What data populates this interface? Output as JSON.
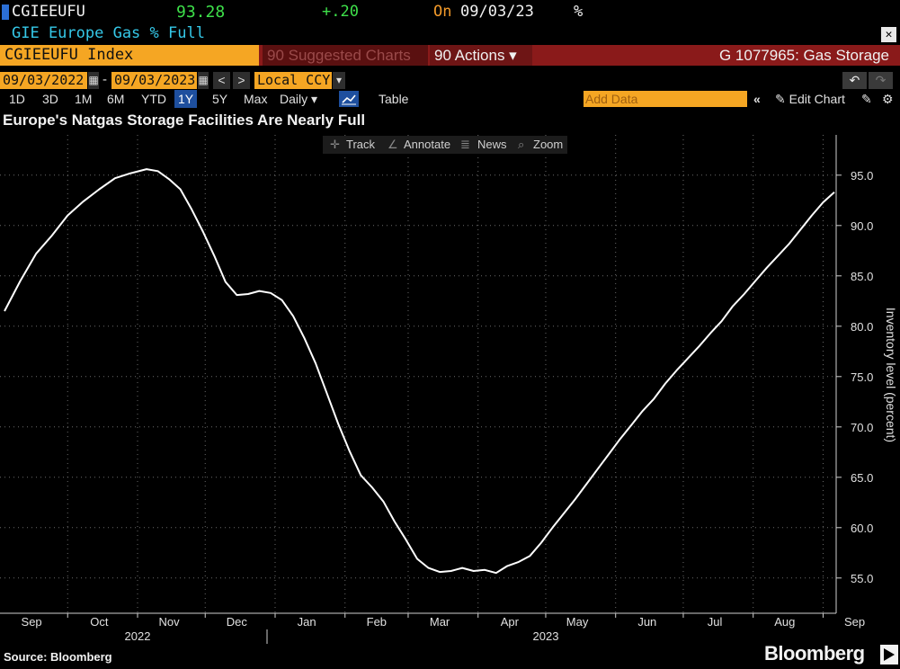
{
  "header": {
    "ticker": "CGIEEUFU",
    "last_price": "93.28",
    "change": "+.20",
    "on_label": "On",
    "on_date": "09/03/23",
    "pct_symbol": "%",
    "description": "GIE Europe Gas % Full",
    "close_glyph": "✕"
  },
  "toolbar_row": {
    "index_label": "CGIEEUFU Index",
    "suggested_label": "90 Suggested Charts",
    "actions_label": "90 Actions ▾",
    "graph_title": "G 1077965: Gas Storage",
    "undo_glyph": "↶",
    "redo_glyph": "↷"
  },
  "date_row": {
    "start_date": "09/03/2022",
    "dash": "-",
    "end_date": "09/03/2023",
    "currency": "Local CCY",
    "prev_glyph": "<",
    "next_glyph": ">",
    "dropdown_glyph": "▾"
  },
  "range_row": {
    "buttons": [
      "1D",
      "3D",
      "1M",
      "6M",
      "YTD",
      "1Y",
      "5Y",
      "Max"
    ],
    "selected": "1Y",
    "frequency": "Daily ▾",
    "table_label": "Table",
    "add_data_placeholder": "Add Data",
    "collapse_glyph": "«",
    "edit_chart_label": "✎ Edit Chart",
    "settings_glyph": "⚙"
  },
  "chart_tools": {
    "track": "Track",
    "annotate": "Annotate",
    "news": "News",
    "zoom": "Zoom"
  },
  "chart_data": {
    "type": "line",
    "title": "Europe's Natgas Storage Facilities Are Nearly Full",
    "ylabel": "Inventory level (percent)",
    "xlabel": "",
    "ylim": [
      51.5,
      99
    ],
    "y_ticks": [
      55.0,
      60.0,
      65.0,
      70.0,
      75.0,
      80.0,
      85.0,
      90.0,
      95.0
    ],
    "x_range": [
      "2022-09-01",
      "2023-09-06"
    ],
    "x_ticks": [
      {
        "label": "Sep",
        "date": "2022-09-15"
      },
      {
        "label": "Oct",
        "date": "2022-10-15"
      },
      {
        "label": "Nov",
        "date": "2022-11-15"
      },
      {
        "label": "Dec",
        "date": "2022-12-15"
      },
      {
        "label": "Jan",
        "date": "2023-01-15"
      },
      {
        "label": "Feb",
        "date": "2023-02-15"
      },
      {
        "label": "Mar",
        "date": "2023-03-15"
      },
      {
        "label": "Apr",
        "date": "2023-04-15"
      },
      {
        "label": "May",
        "date": "2023-05-15"
      },
      {
        "label": "Jun",
        "date": "2023-06-15"
      },
      {
        "label": "Jul",
        "date": "2023-07-15"
      },
      {
        "label": "Aug",
        "date": "2023-08-15"
      },
      {
        "label": "Sep",
        "date": "2023-09-15"
      }
    ],
    "year_labels": [
      {
        "label": "2022",
        "date": "2022-11-01"
      },
      {
        "label": "2023",
        "date": "2023-05-01"
      }
    ],
    "grid": true,
    "series": [
      {
        "color": "#ffffff",
        "points": [
          [
            "2022-09-03",
            81.5
          ],
          [
            "2022-09-10",
            84.5
          ],
          [
            "2022-09-17",
            87.2
          ],
          [
            "2022-09-24",
            89.0
          ],
          [
            "2022-10-01",
            91.0
          ],
          [
            "2022-10-08",
            92.4
          ],
          [
            "2022-10-15",
            93.6
          ],
          [
            "2022-10-22",
            94.7
          ],
          [
            "2022-10-29",
            95.2
          ],
          [
            "2022-11-05",
            95.6
          ],
          [
            "2022-11-10",
            95.4
          ],
          [
            "2022-11-15",
            94.6
          ],
          [
            "2022-11-20",
            93.6
          ],
          [
            "2022-11-25",
            91.6
          ],
          [
            "2022-11-30",
            89.4
          ],
          [
            "2022-12-05",
            87.0
          ],
          [
            "2022-12-10",
            84.4
          ],
          [
            "2022-12-15",
            83.1
          ],
          [
            "2022-12-20",
            83.2
          ],
          [
            "2022-12-25",
            83.5
          ],
          [
            "2022-12-30",
            83.3
          ],
          [
            "2023-01-04",
            82.6
          ],
          [
            "2023-01-09",
            81.0
          ],
          [
            "2023-01-14",
            78.8
          ],
          [
            "2023-01-19",
            76.3
          ],
          [
            "2023-01-24",
            73.3
          ],
          [
            "2023-01-29",
            70.3
          ],
          [
            "2023-02-03",
            67.6
          ],
          [
            "2023-02-08",
            65.2
          ],
          [
            "2023-02-13",
            64.0
          ],
          [
            "2023-02-18",
            62.6
          ],
          [
            "2023-02-23",
            60.6
          ],
          [
            "2023-02-28",
            58.8
          ],
          [
            "2023-03-05",
            56.9
          ],
          [
            "2023-03-10",
            56.0
          ],
          [
            "2023-03-15",
            55.6
          ],
          [
            "2023-03-20",
            55.7
          ],
          [
            "2023-03-25",
            56.0
          ],
          [
            "2023-03-30",
            55.7
          ],
          [
            "2023-04-04",
            55.8
          ],
          [
            "2023-04-09",
            55.5
          ],
          [
            "2023-04-14",
            56.2
          ],
          [
            "2023-04-19",
            56.6
          ],
          [
            "2023-04-24",
            57.2
          ],
          [
            "2023-04-29",
            58.5
          ],
          [
            "2023-05-04",
            60.0
          ],
          [
            "2023-05-09",
            61.4
          ],
          [
            "2023-05-14",
            62.8
          ],
          [
            "2023-05-19",
            64.3
          ],
          [
            "2023-05-24",
            65.8
          ],
          [
            "2023-05-29",
            67.3
          ],
          [
            "2023-06-03",
            68.8
          ],
          [
            "2023-06-08",
            70.2
          ],
          [
            "2023-06-13",
            71.6
          ],
          [
            "2023-06-18",
            72.8
          ],
          [
            "2023-06-23",
            74.3
          ],
          [
            "2023-06-28",
            75.6
          ],
          [
            "2023-07-03",
            76.8
          ],
          [
            "2023-07-08",
            78.0
          ],
          [
            "2023-07-13",
            79.3
          ],
          [
            "2023-07-18",
            80.5
          ],
          [
            "2023-07-23",
            82.0
          ],
          [
            "2023-07-28",
            83.2
          ],
          [
            "2023-08-02",
            84.5
          ],
          [
            "2023-08-07",
            85.8
          ],
          [
            "2023-08-12",
            87.0
          ],
          [
            "2023-08-17",
            88.2
          ],
          [
            "2023-08-22",
            89.6
          ],
          [
            "2023-08-27",
            91.0
          ],
          [
            "2023-09-01",
            92.3
          ],
          [
            "2023-09-06",
            93.3
          ]
        ]
      }
    ]
  },
  "footer": {
    "source": "Source: Bloomberg",
    "brand": "Bloomberg"
  }
}
